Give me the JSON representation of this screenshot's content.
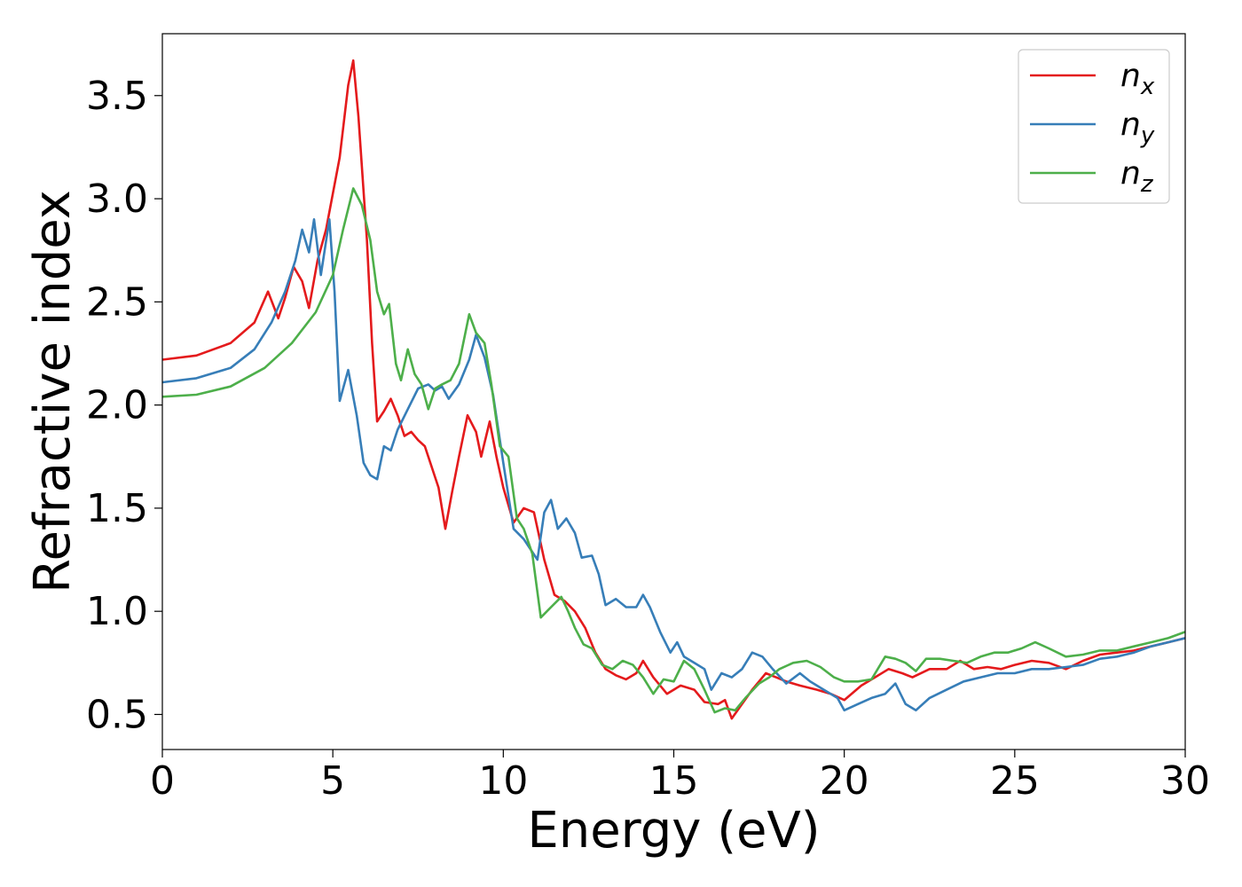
{
  "chart_data": {
    "type": "line",
    "title": "",
    "xlabel": "Energy (eV)",
    "ylabel": "Refractive index",
    "xlim": [
      0,
      30
    ],
    "ylim": [
      0.33,
      3.8
    ],
    "x_ticks": [
      0,
      5,
      10,
      15,
      20,
      25,
      30
    ],
    "x_tick_labels": [
      "0",
      "5",
      "10",
      "15",
      "20",
      "25",
      "30"
    ],
    "y_ticks": [
      0.5,
      1.0,
      1.5,
      2.0,
      2.5,
      3.0,
      3.5
    ],
    "y_tick_labels": [
      "0.5",
      "1.0",
      "1.5",
      "2.0",
      "2.5",
      "3.0",
      "3.5"
    ],
    "grid": false,
    "legend_position": "top-right",
    "series": [
      {
        "name": "n_x",
        "label_base": "n",
        "label_sub": "x",
        "color": "#e41a1c",
        "points": [
          [
            0,
            2.22
          ],
          [
            1,
            2.24
          ],
          [
            2,
            2.3
          ],
          [
            2.7,
            2.4
          ],
          [
            3.1,
            2.55
          ],
          [
            3.4,
            2.42
          ],
          [
            3.6,
            2.52
          ],
          [
            3.85,
            2.67
          ],
          [
            4.1,
            2.6
          ],
          [
            4.3,
            2.47
          ],
          [
            4.55,
            2.7
          ],
          [
            4.8,
            2.85
          ],
          [
            5.2,
            3.2
          ],
          [
            5.45,
            3.55
          ],
          [
            5.6,
            3.67
          ],
          [
            5.75,
            3.4
          ],
          [
            6.0,
            2.8
          ],
          [
            6.15,
            2.3
          ],
          [
            6.3,
            1.92
          ],
          [
            6.5,
            1.97
          ],
          [
            6.7,
            2.03
          ],
          [
            6.9,
            1.95
          ],
          [
            7.1,
            1.85
          ],
          [
            7.3,
            1.87
          ],
          [
            7.5,
            1.83
          ],
          [
            7.7,
            1.8
          ],
          [
            7.9,
            1.7
          ],
          [
            8.1,
            1.6
          ],
          [
            8.3,
            1.4
          ],
          [
            8.5,
            1.58
          ],
          [
            8.7,
            1.75
          ],
          [
            8.95,
            1.95
          ],
          [
            9.2,
            1.87
          ],
          [
            9.35,
            1.75
          ],
          [
            9.6,
            1.92
          ],
          [
            9.8,
            1.75
          ],
          [
            10.0,
            1.6
          ],
          [
            10.3,
            1.43
          ],
          [
            10.6,
            1.5
          ],
          [
            10.9,
            1.48
          ],
          [
            11.2,
            1.25
          ],
          [
            11.5,
            1.08
          ],
          [
            11.8,
            1.05
          ],
          [
            12.1,
            1.0
          ],
          [
            12.4,
            0.92
          ],
          [
            12.7,
            0.8
          ],
          [
            13.0,
            0.72
          ],
          [
            13.3,
            0.69
          ],
          [
            13.6,
            0.67
          ],
          [
            13.9,
            0.7
          ],
          [
            14.1,
            0.76
          ],
          [
            14.4,
            0.68
          ],
          [
            14.8,
            0.6
          ],
          [
            15.2,
            0.64
          ],
          [
            15.6,
            0.62
          ],
          [
            15.9,
            0.56
          ],
          [
            16.3,
            0.55
          ],
          [
            16.5,
            0.57
          ],
          [
            16.7,
            0.48
          ],
          [
            17.0,
            0.55
          ],
          [
            17.3,
            0.62
          ],
          [
            17.7,
            0.7
          ],
          [
            18.0,
            0.68
          ],
          [
            18.3,
            0.66
          ],
          [
            18.7,
            0.64
          ],
          [
            19.2,
            0.62
          ],
          [
            19.6,
            0.6
          ],
          [
            20.0,
            0.57
          ],
          [
            20.5,
            0.64
          ],
          [
            20.9,
            0.68
          ],
          [
            21.3,
            0.72
          ],
          [
            21.7,
            0.7
          ],
          [
            22.0,
            0.68
          ],
          [
            22.5,
            0.72
          ],
          [
            23.0,
            0.72
          ],
          [
            23.4,
            0.76
          ],
          [
            23.8,
            0.72
          ],
          [
            24.2,
            0.73
          ],
          [
            24.6,
            0.72
          ],
          [
            25.0,
            0.74
          ],
          [
            25.5,
            0.76
          ],
          [
            26.0,
            0.75
          ],
          [
            26.5,
            0.72
          ],
          [
            27.0,
            0.76
          ],
          [
            27.5,
            0.79
          ],
          [
            28.0,
            0.8
          ],
          [
            28.5,
            0.81
          ],
          [
            29.0,
            0.83
          ],
          [
            29.5,
            0.85
          ],
          [
            30.0,
            0.87
          ]
        ]
      },
      {
        "name": "n_y",
        "label_base": "n",
        "label_sub": "y",
        "color": "#377eb8",
        "points": [
          [
            0,
            2.11
          ],
          [
            1,
            2.13
          ],
          [
            2,
            2.18
          ],
          [
            2.7,
            2.27
          ],
          [
            3.2,
            2.4
          ],
          [
            3.6,
            2.55
          ],
          [
            3.9,
            2.7
          ],
          [
            4.1,
            2.85
          ],
          [
            4.3,
            2.74
          ],
          [
            4.45,
            2.9
          ],
          [
            4.65,
            2.63
          ],
          [
            4.9,
            2.9
          ],
          [
            5.05,
            2.55
          ],
          [
            5.2,
            2.02
          ],
          [
            5.45,
            2.17
          ],
          [
            5.7,
            1.95
          ],
          [
            5.9,
            1.72
          ],
          [
            6.1,
            1.66
          ],
          [
            6.3,
            1.64
          ],
          [
            6.5,
            1.8
          ],
          [
            6.7,
            1.78
          ],
          [
            6.9,
            1.88
          ],
          [
            7.2,
            1.98
          ],
          [
            7.5,
            2.08
          ],
          [
            7.8,
            2.1
          ],
          [
            8.0,
            2.07
          ],
          [
            8.2,
            2.09
          ],
          [
            8.4,
            2.03
          ],
          [
            8.7,
            2.1
          ],
          [
            9.0,
            2.22
          ],
          [
            9.2,
            2.34
          ],
          [
            9.45,
            2.23
          ],
          [
            9.7,
            2.05
          ],
          [
            10.0,
            1.72
          ],
          [
            10.3,
            1.4
          ],
          [
            10.6,
            1.35
          ],
          [
            10.8,
            1.3
          ],
          [
            11.0,
            1.25
          ],
          [
            11.2,
            1.48
          ],
          [
            11.4,
            1.54
          ],
          [
            11.6,
            1.4
          ],
          [
            11.85,
            1.45
          ],
          [
            12.1,
            1.38
          ],
          [
            12.3,
            1.26
          ],
          [
            12.6,
            1.27
          ],
          [
            12.8,
            1.18
          ],
          [
            13.0,
            1.03
          ],
          [
            13.3,
            1.06
          ],
          [
            13.6,
            1.02
          ],
          [
            13.9,
            1.02
          ],
          [
            14.1,
            1.08
          ],
          [
            14.3,
            1.02
          ],
          [
            14.6,
            0.9
          ],
          [
            14.9,
            0.8
          ],
          [
            15.1,
            0.85
          ],
          [
            15.3,
            0.78
          ],
          [
            15.6,
            0.75
          ],
          [
            15.9,
            0.72
          ],
          [
            16.1,
            0.62
          ],
          [
            16.4,
            0.7
          ],
          [
            16.7,
            0.68
          ],
          [
            17.0,
            0.72
          ],
          [
            17.3,
            0.8
          ],
          [
            17.6,
            0.78
          ],
          [
            17.9,
            0.72
          ],
          [
            18.3,
            0.65
          ],
          [
            18.7,
            0.7
          ],
          [
            19.0,
            0.66
          ],
          [
            19.4,
            0.62
          ],
          [
            19.8,
            0.58
          ],
          [
            20.0,
            0.52
          ],
          [
            20.4,
            0.55
          ],
          [
            20.8,
            0.58
          ],
          [
            21.2,
            0.6
          ],
          [
            21.5,
            0.65
          ],
          [
            21.8,
            0.55
          ],
          [
            22.1,
            0.52
          ],
          [
            22.5,
            0.58
          ],
          [
            23.0,
            0.62
          ],
          [
            23.5,
            0.66
          ],
          [
            24.0,
            0.68
          ],
          [
            24.5,
            0.7
          ],
          [
            25.0,
            0.7
          ],
          [
            25.5,
            0.72
          ],
          [
            26.0,
            0.72
          ],
          [
            26.5,
            0.73
          ],
          [
            27.0,
            0.74
          ],
          [
            27.5,
            0.77
          ],
          [
            28.0,
            0.78
          ],
          [
            28.5,
            0.8
          ],
          [
            29.0,
            0.83
          ],
          [
            29.5,
            0.85
          ],
          [
            30.0,
            0.87
          ]
        ]
      },
      {
        "name": "n_z",
        "label_base": "n",
        "label_sub": "z",
        "color": "#4daf4a",
        "points": [
          [
            0,
            2.04
          ],
          [
            1,
            2.05
          ],
          [
            2,
            2.09
          ],
          [
            3.0,
            2.18
          ],
          [
            3.8,
            2.3
          ],
          [
            4.5,
            2.45
          ],
          [
            5.0,
            2.63
          ],
          [
            5.3,
            2.85
          ],
          [
            5.6,
            3.05
          ],
          [
            5.85,
            2.97
          ],
          [
            6.1,
            2.8
          ],
          [
            6.3,
            2.55
          ],
          [
            6.5,
            2.44
          ],
          [
            6.65,
            2.49
          ],
          [
            6.85,
            2.2
          ],
          [
            7.0,
            2.12
          ],
          [
            7.2,
            2.27
          ],
          [
            7.4,
            2.15
          ],
          [
            7.6,
            2.1
          ],
          [
            7.8,
            1.98
          ],
          [
            8.0,
            2.08
          ],
          [
            8.2,
            2.1
          ],
          [
            8.45,
            2.12
          ],
          [
            8.7,
            2.2
          ],
          [
            9.0,
            2.44
          ],
          [
            9.2,
            2.35
          ],
          [
            9.45,
            2.3
          ],
          [
            9.65,
            2.1
          ],
          [
            9.9,
            1.8
          ],
          [
            10.15,
            1.75
          ],
          [
            10.4,
            1.45
          ],
          [
            10.6,
            1.4
          ],
          [
            10.85,
            1.28
          ],
          [
            11.1,
            0.97
          ],
          [
            11.4,
            1.02
          ],
          [
            11.7,
            1.07
          ],
          [
            11.9,
            1.0
          ],
          [
            12.1,
            0.92
          ],
          [
            12.35,
            0.84
          ],
          [
            12.6,
            0.82
          ],
          [
            12.9,
            0.74
          ],
          [
            13.2,
            0.72
          ],
          [
            13.5,
            0.76
          ],
          [
            13.8,
            0.74
          ],
          [
            14.1,
            0.68
          ],
          [
            14.4,
            0.6
          ],
          [
            14.7,
            0.67
          ],
          [
            15.0,
            0.66
          ],
          [
            15.3,
            0.76
          ],
          [
            15.6,
            0.72
          ],
          [
            15.9,
            0.62
          ],
          [
            16.2,
            0.51
          ],
          [
            16.5,
            0.53
          ],
          [
            16.8,
            0.52
          ],
          [
            17.1,
            0.58
          ],
          [
            17.5,
            0.65
          ],
          [
            17.8,
            0.68
          ],
          [
            18.1,
            0.72
          ],
          [
            18.5,
            0.75
          ],
          [
            18.9,
            0.76
          ],
          [
            19.3,
            0.73
          ],
          [
            19.7,
            0.68
          ],
          [
            20.0,
            0.66
          ],
          [
            20.4,
            0.66
          ],
          [
            20.8,
            0.67
          ],
          [
            21.2,
            0.78
          ],
          [
            21.5,
            0.77
          ],
          [
            21.8,
            0.75
          ],
          [
            22.1,
            0.71
          ],
          [
            22.4,
            0.77
          ],
          [
            22.8,
            0.77
          ],
          [
            23.2,
            0.76
          ],
          [
            23.6,
            0.75
          ],
          [
            24.0,
            0.78
          ],
          [
            24.4,
            0.8
          ],
          [
            24.8,
            0.8
          ],
          [
            25.2,
            0.82
          ],
          [
            25.6,
            0.85
          ],
          [
            26.0,
            0.82
          ],
          [
            26.5,
            0.78
          ],
          [
            27.0,
            0.79
          ],
          [
            27.5,
            0.81
          ],
          [
            28.0,
            0.81
          ],
          [
            28.5,
            0.83
          ],
          [
            29.0,
            0.85
          ],
          [
            29.5,
            0.87
          ],
          [
            30.0,
            0.9
          ]
        ]
      }
    ]
  }
}
